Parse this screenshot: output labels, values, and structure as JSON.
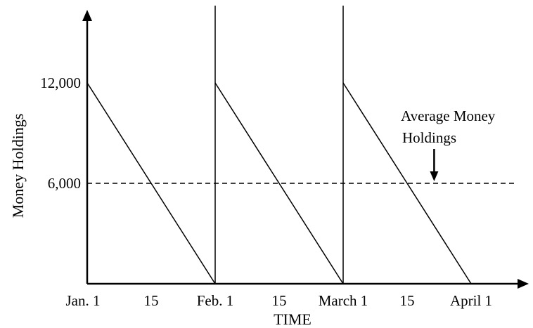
{
  "chart_data": {
    "type": "line",
    "title": "",
    "xlabel": "TIME",
    "ylabel": "Money Holdings",
    "x_tick_labels": [
      "Jan. 1",
      "15",
      "Feb. 1",
      "15",
      "March 1",
      "15",
      "April 1"
    ],
    "x_tick_values": [
      0,
      0.5,
      1,
      1.5,
      2,
      2.5,
      3
    ],
    "y_tick_labels": [
      "6,000",
      "12,000"
    ],
    "y_tick_values": [
      6000,
      12000
    ],
    "xlim": [
      0,
      3.35
    ],
    "ylim": [
      0,
      16000
    ],
    "grid": false,
    "series": [
      {
        "x": [
          0,
          1,
          1,
          2,
          2,
          3
        ],
        "y": [
          12000,
          0,
          12000,
          0,
          12000,
          0
        ]
      }
    ],
    "average_line": {
      "y": 6000,
      "x_range": [
        0,
        3.2
      ],
      "style": "dashed"
    },
    "vertical_lines_at": [
      1,
      2
    ],
    "annotation": {
      "lines": [
        "Average Money",
        "Holdings"
      ],
      "arrow_target": {
        "x": 2.7,
        "y": 6000
      }
    }
  }
}
